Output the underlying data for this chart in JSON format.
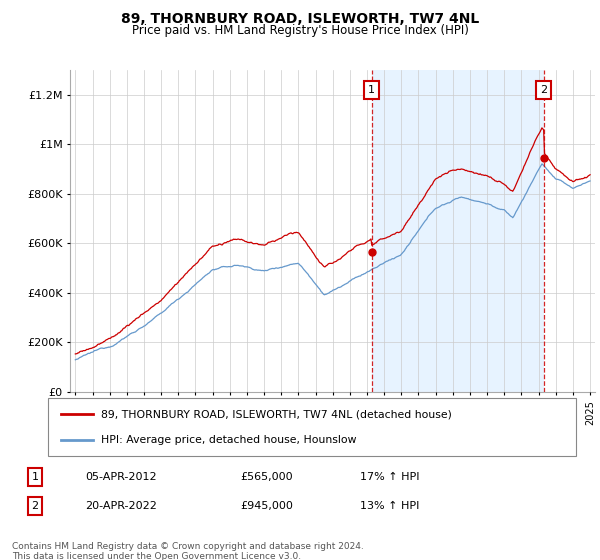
{
  "title": "89, THORNBURY ROAD, ISLEWORTH, TW7 4NL",
  "subtitle": "Price paid vs. HM Land Registry's House Price Index (HPI)",
  "ylim": [
    0,
    1300000
  ],
  "yticks": [
    0,
    200000,
    400000,
    600000,
    800000,
    1000000,
    1200000
  ],
  "ytick_labels": [
    "£0",
    "£200K",
    "£400K",
    "£600K",
    "£800K",
    "£1M",
    "£1.2M"
  ],
  "legend_label_red": "89, THORNBURY ROAD, ISLEWORTH, TW7 4NL (detached house)",
  "legend_label_blue": "HPI: Average price, detached house, Hounslow",
  "annotation1_date": "05-APR-2012",
  "annotation1_price": "£565,000",
  "annotation1_hpi": "17% ↑ HPI",
  "annotation2_date": "20-APR-2022",
  "annotation2_price": "£945,000",
  "annotation2_hpi": "13% ↑ HPI",
  "footer": "Contains HM Land Registry data © Crown copyright and database right 2024.\nThis data is licensed under the Open Government Licence v3.0.",
  "red_color": "#cc0000",
  "blue_color": "#6699cc",
  "fill_color": "#ddeeff",
  "annotation_color": "#cc0000",
  "grid_color": "#cccccc",
  "sale1_x": 2012.27,
  "sale1_y": 565000,
  "sale2_x": 2022.3,
  "sale2_y": 945000,
  "xmin": 1994.7,
  "xmax": 2025.3
}
